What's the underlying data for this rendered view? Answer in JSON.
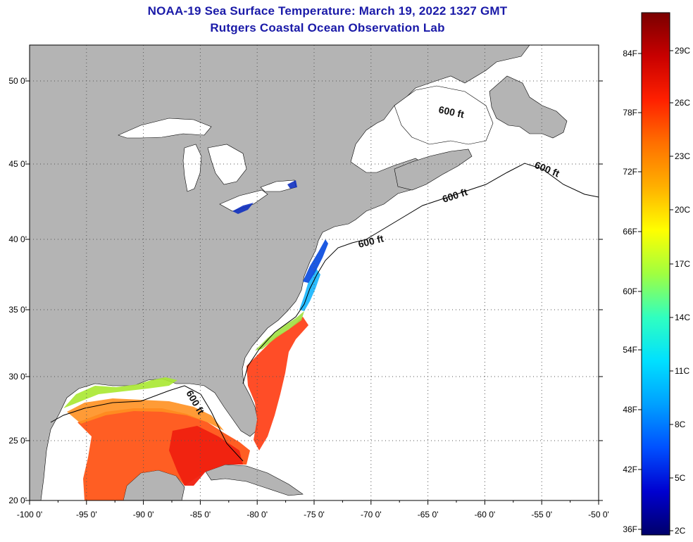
{
  "title": {
    "line1": "NOAA-19 Sea Surface Temperature:  March 19, 2022 1327 GMT",
    "line2": "Rutgers Coastal Ocean Observation Lab"
  },
  "map": {
    "lon_ticks": [
      "-100 0'",
      "-95 0'",
      "-90 0'",
      "-85 0'",
      "-80 0'",
      "-75 0'",
      "-70 0'",
      "-65 0'",
      "-60 0'",
      "-55 0'",
      "-50 0'"
    ],
    "lat_ticks": [
      "50 0'",
      "45 0'",
      "40 0'",
      "35 0'",
      "30 0'",
      "25 0'",
      "20 0'"
    ],
    "contour_label": "600 ft",
    "colors": {
      "land": "#b4b4b4",
      "water_nodata": "#ffffff",
      "grid": "#555555"
    }
  },
  "colorbar": {
    "fahrenheit_labels": [
      "84F",
      "78F",
      "72F",
      "66F",
      "60F",
      "54F",
      "48F",
      "42F",
      "36F"
    ],
    "celsius_labels": [
      "29C",
      "26C",
      "23C",
      "20C",
      "17C",
      "14C",
      "11C",
      "8C",
      "5C",
      "2C"
    ],
    "gradient": [
      "#7a0000",
      "#c80000",
      "#ff2000",
      "#ff7000",
      "#ffb000",
      "#ffff00",
      "#a0ff40",
      "#30ffc0",
      "#00e0ff",
      "#00a0ff",
      "#0050ff",
      "#0000d0",
      "#00006a"
    ]
  }
}
